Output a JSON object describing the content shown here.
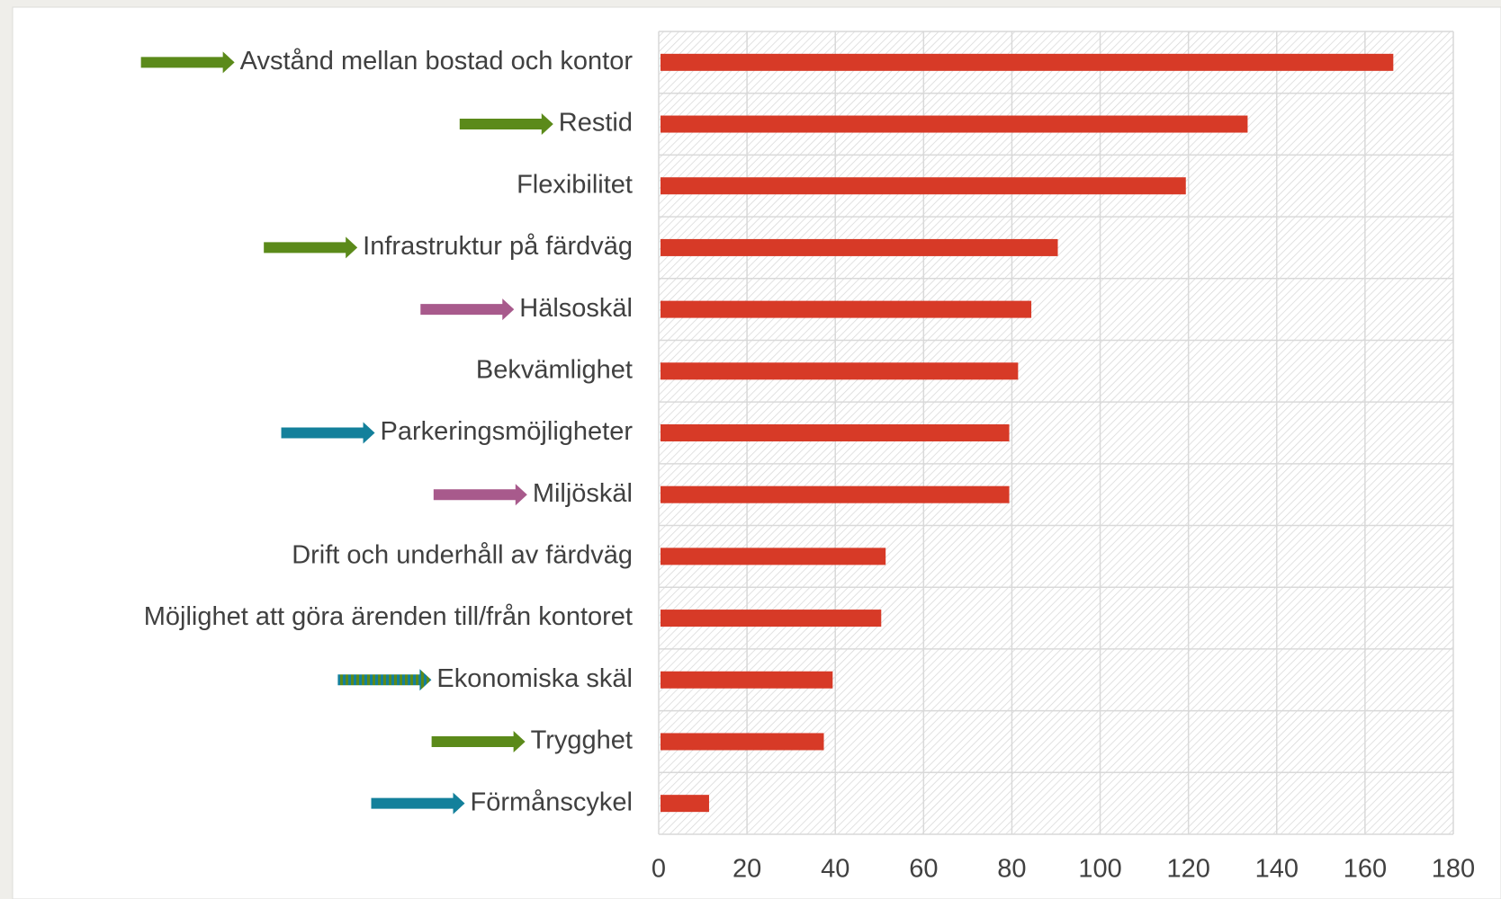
{
  "chart_data": {
    "type": "bar",
    "orientation": "horizontal",
    "categories": [
      "Avstånd mellan bostad och kontor",
      "Restid",
      "Flexibilitet",
      "Infrastruktur på färdväg",
      "Hälsoskäl",
      "Bekvämlighet",
      "Parkeringsmöjligheter",
      "Miljöskäl",
      "Drift och underhåll av färdväg",
      "Möjlighet att göra ärenden till/från kontoret",
      "Ekonomiska skäl",
      "Trygghet",
      "Förmånscykel"
    ],
    "values": [
      166,
      133,
      119,
      90,
      84,
      81,
      79,
      79,
      51,
      50,
      39,
      37,
      11
    ],
    "color": "#d73a27",
    "arrow_colors": [
      "#5b8a1a",
      "#5b8a1a",
      null,
      "#5b8a1a",
      "#a85a8c",
      null,
      "#13809b",
      "#a85a8c",
      null,
      null,
      [
        "#5b8a1a",
        "#13809b"
      ],
      "#5b8a1a",
      "#13809b"
    ],
    "xlim": [
      0,
      180
    ],
    "xticks": [
      0,
      20,
      40,
      60,
      80,
      100,
      120,
      140,
      160,
      180
    ],
    "grid": true
  }
}
